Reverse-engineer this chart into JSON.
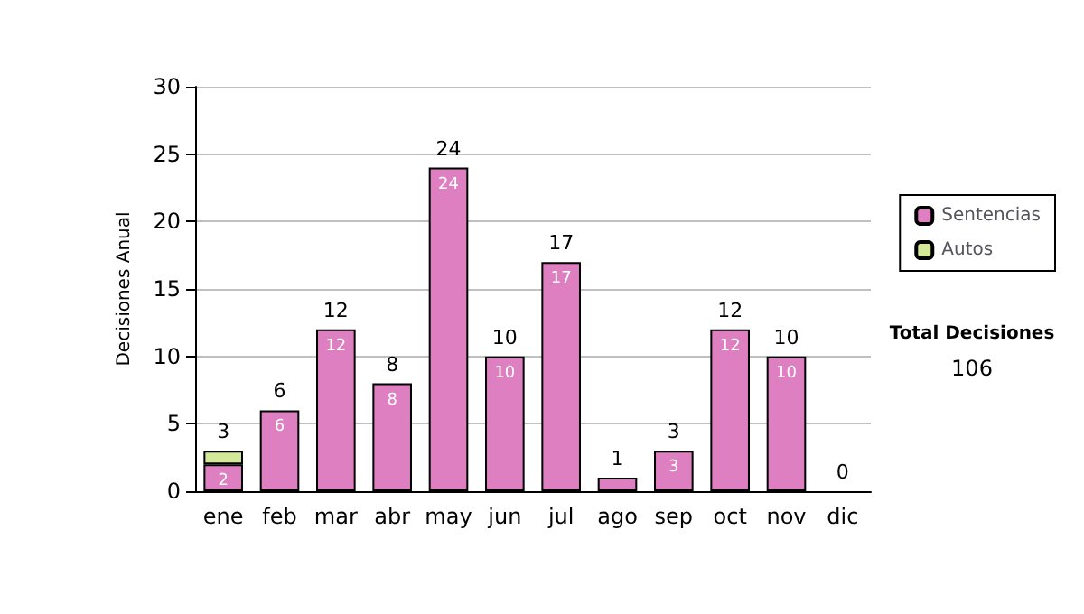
{
  "chart_data": {
    "type": "bar",
    "stacked": true,
    "ylabel": "Decisiones Anual",
    "categories": [
      "ene",
      "feb",
      "mar",
      "abr",
      "may",
      "jun",
      "jul",
      "ago",
      "sep",
      "oct",
      "nov",
      "dic"
    ],
    "series": [
      {
        "name": "Sentencias",
        "color": "#dd7fc0",
        "values": [
          2,
          6,
          12,
          8,
          24,
          10,
          17,
          1,
          3,
          12,
          10,
          0
        ],
        "value_labels": [
          "2",
          "6",
          "12",
          "8",
          "24",
          "10",
          "17",
          null,
          "3",
          "12",
          "10",
          null
        ]
      },
      {
        "name": "Autos",
        "color": "#d4e89a",
        "values": [
          1,
          0,
          0,
          0,
          0,
          0,
          0,
          0,
          0,
          0,
          0,
          0
        ]
      }
    ],
    "totals": [
      "3",
      "6",
      "12",
      "8",
      "24",
      "10",
      "17",
      "1",
      "3",
      "12",
      "10",
      "0"
    ],
    "ylim": [
      0,
      30
    ],
    "yticks": [
      0,
      5,
      10,
      15,
      20,
      25,
      30
    ],
    "grid": "y",
    "legend": "right",
    "annotations": [
      "Total Decisiones",
      "106"
    ]
  }
}
